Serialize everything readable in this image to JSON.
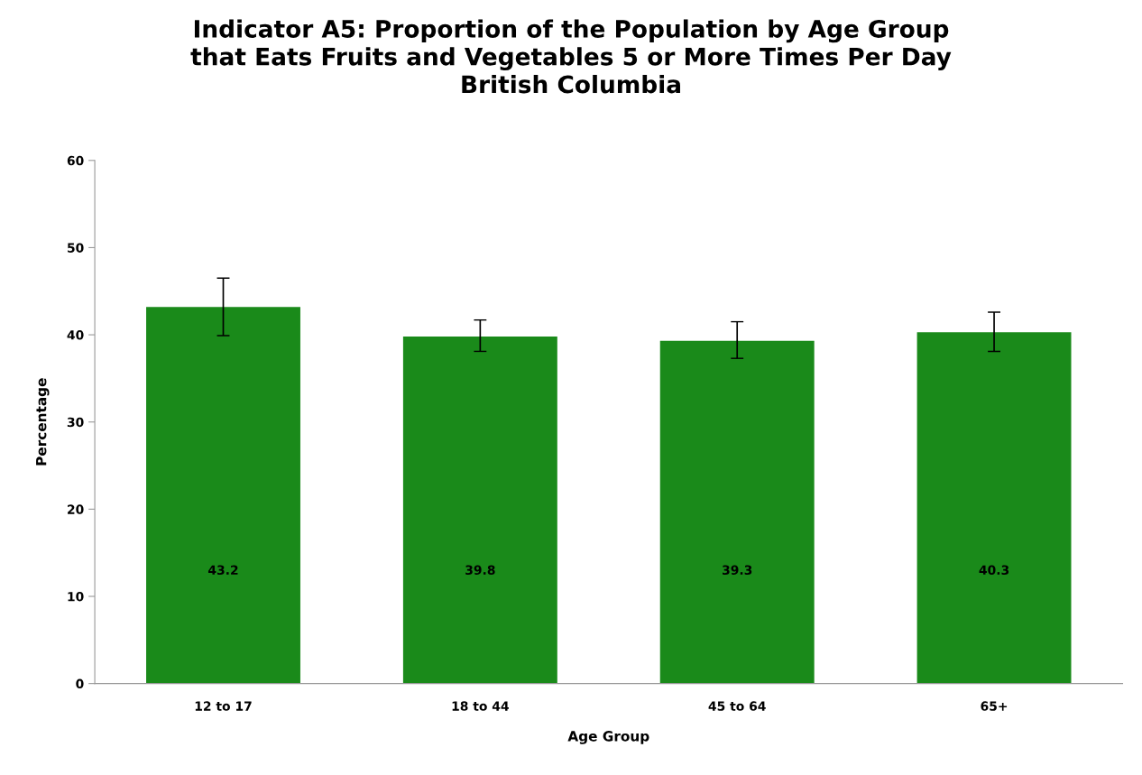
{
  "chart_data": {
    "type": "bar",
    "title": "Indicator A5: Proportion of the Population by Age Group\nthat Eats Fruits and Vegetables 5 or More Times Per Day\nBritish Columbia",
    "xlabel": "Age Group",
    "ylabel": "Percentage",
    "categories": [
      "12 to 17",
      "18 to 44",
      "45 to 64",
      "65+"
    ],
    "values": [
      43.2,
      39.8,
      39.3,
      40.3
    ],
    "errors": [
      [
        39.9,
        46.5
      ],
      [
        38.1,
        41.7
      ],
      [
        37.3,
        41.5
      ],
      [
        38.1,
        42.6
      ]
    ],
    "color": "#1a8a1a",
    "data_labels": true,
    "ylim": [
      0,
      60
    ],
    "yticks": [
      0,
      10,
      20,
      30,
      40,
      50,
      60
    ],
    "grid": false,
    "legend": false
  }
}
